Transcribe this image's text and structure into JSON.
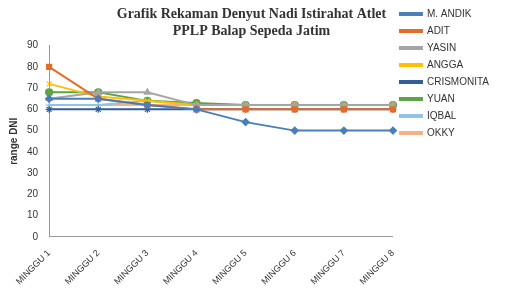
{
  "chart_data": {
    "type": "line",
    "title": "Grafik Rekaman Denyut Nadi Istirahat Atlet\nPPLP Balap Sepeda Jatim",
    "y_label": "range DNI",
    "categories": [
      "MINGGU 1",
      "MINGGU 2",
      "MINGGU 3",
      "MINGGU 4",
      "MINGGU 5",
      "MINGGU 6",
      "MINGGU 7",
      "MINGGU 8"
    ],
    "series": [
      {
        "name": "M. ANDIK",
        "color": "#4a7ebb",
        "marker": "diamond",
        "values": [
          65,
          65,
          62,
          60,
          54,
          50,
          50,
          50
        ]
      },
      {
        "name": "ADIT",
        "color": "#e46c26",
        "marker": "square",
        "values": [
          80,
          65,
          62,
          60,
          60,
          60,
          60,
          60
        ]
      },
      {
        "name": "YASIN",
        "color": "#a5a5a5",
        "marker": "triangle",
        "values": [
          65,
          68,
          68,
          62,
          62,
          62,
          62,
          62
        ]
      },
      {
        "name": "ANGGA",
        "color": "#ffc000",
        "marker": "x",
        "values": [
          72,
          66,
          64,
          62,
          62,
          62,
          62,
          62
        ]
      },
      {
        "name": "CRISMONITA",
        "color": "#2f5f98",
        "marker": "star",
        "values": [
          60,
          60,
          60,
          60,
          60,
          60,
          60,
          60
        ]
      },
      {
        "name": "YUAN",
        "color": "#5ea345",
        "marker": "circle",
        "values": [
          68,
          68,
          64,
          63,
          62,
          62,
          62,
          62
        ]
      },
      {
        "name": "IQBAL",
        "color": "#8fc3ea",
        "marker": "plus",
        "values": [
          62,
          62,
          64,
          62,
          62,
          62,
          62,
          62
        ]
      },
      {
        "name": "OKKY",
        "color": "#f4b183",
        "marker": "none",
        "values": [
          62,
          62,
          62,
          62,
          62,
          62,
          62,
          62
        ]
      }
    ],
    "ylim": [
      0,
      90
    ],
    "yticks": [
      0,
      10,
      20,
      30,
      40,
      50,
      60,
      70,
      80,
      90
    ],
    "grid": false,
    "legend": "right"
  }
}
